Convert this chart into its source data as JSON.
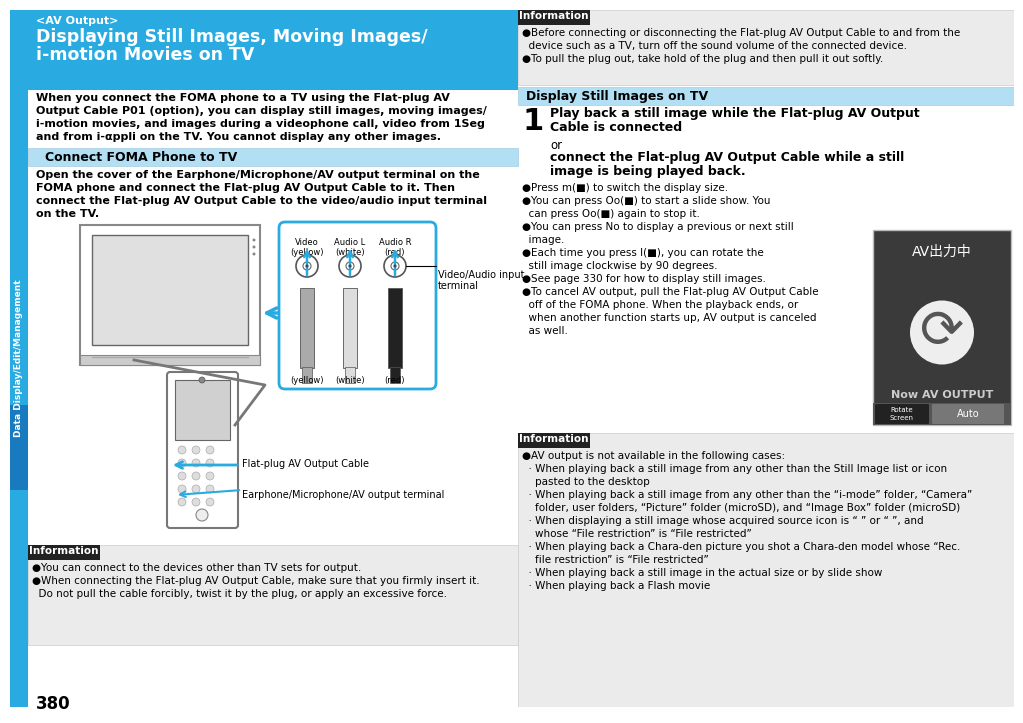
{
  "page_bg": "#ffffff",
  "sidebar_color": "#29abe2",
  "sidebar_text": "Data Display/Edit/Management",
  "page_number": "380",
  "header_bg": "#29abe2",
  "header_tag": "<AV Output>",
  "header_title_line1": "Displaying Still Images, Moving Images/",
  "header_title_line2": "i-motion Movies on TV",
  "intro_text_lines": [
    "When you connect the FOMA phone to a TV using the Flat-plug AV",
    "Output Cable P01 (option), you can display still images, moving images/",
    "i-motion movies, and images during a videophone call, video from 1Seg",
    "and from i-αppli on the TV. You cannot display any other images."
  ],
  "section1_bg": "#b3dff5",
  "section1_title": "Connect FOMA Phone to TV",
  "section1_text_lines": [
    "Open the cover of the Earphone/Microphone/AV output terminal on the",
    "FOMA phone and connect the Flat-plug AV Output Cable to it. Then",
    "connect the Flat-plug AV Output Cable to the video/audio input terminal",
    "on the TV."
  ],
  "info_bg": "#ebebeb",
  "info_header_bg": "#222222",
  "info_header_text": "Information",
  "info1_bullets": [
    "You can connect to the devices other than TV sets for output.",
    "When connecting the Flat-plug AV Output Cable, make sure that you firmly insert it.",
    "  Do not pull the cable forcibly, twist it by the plug, or apply an excessive force."
  ],
  "info2_bullets": [
    "Before connecting or disconnecting the Flat-plug AV Output Cable to and from the",
    "  device such as a TV, turn off the sound volume of the connected device.",
    "To pull the plug out, take hold of the plug and then pull it out softly."
  ],
  "section2_bg": "#b3dff5",
  "section2_title": "Display Still Images on TV",
  "step1_number": "1",
  "step1_bold_lines": [
    "Play back a still image while the Flat-plug AV Output",
    "Cable is connected"
  ],
  "step1_or": "or",
  "step1_bold2_lines": [
    "connect the Flat-plug AV Output Cable while a still",
    "image is being played back."
  ],
  "step1_bullet_lines": [
    "●Press m(■) to switch the display size.",
    "●You can press Oo(■) to start a slide show. You",
    "  can press Oo(■) again to stop it.",
    "●You can press No to display a previous or next still",
    "  image.",
    "●Each time you press l(■), you can rotate the",
    "  still image clockwise by 90 degrees.",
    "●See page 330 for how to display still images.",
    "●To cancel AV output, pull the Flat-plug AV Output Cable",
    "  off of the FOMA phone. When the playback ends, or",
    "  when another function starts up, AV output is canceled",
    "  as well."
  ],
  "info3_bullet_lines": [
    "●AV output is not available in the following cases:",
    "  · When playing back a still image from any other than the Still Image list or icon",
    "    pasted to the desktop",
    "  · When playing back a still image from any other than the “i-mode” folder, “Camera”",
    "    folder, user folders, “Picture” folder (microSD), and “Image Box” folder (microSD)",
    "  · When displaying a still image whose acquired source icon is “ ” or “ ”, and",
    "    whose “File restriction” is “File restricted”",
    "  · When playing back a Chara-den picture you shot a Chara-den model whose “Rec.",
    "    file restriction” is “File restricted”",
    "  · When playing back a still image in the actual size or by slide show",
    "  · When playing back a Flash movie"
  ],
  "diagram_labels": {
    "video": "Video",
    "video_color": "(yellow)",
    "audio_l": "Audio L",
    "audio_l_color": "(white)",
    "audio_r": "Audio R",
    "audio_r_color": "(red)",
    "vi_terminal_line1": "Video/Audio input",
    "vi_terminal_line2": "terminal",
    "yellow": "(yellow)",
    "white": "(white)",
    "red": "(red)",
    "flat_cable": "Flat-plug AV Output Cable",
    "earphone": "Earphone/Microphone/AV output terminal"
  },
  "tv_screen_text": "AV出力中",
  "tv_screen_text2": "Now AV OUTPUT",
  "tv_btn1": "Rotate\nScreen",
  "tv_btn2": "Auto"
}
